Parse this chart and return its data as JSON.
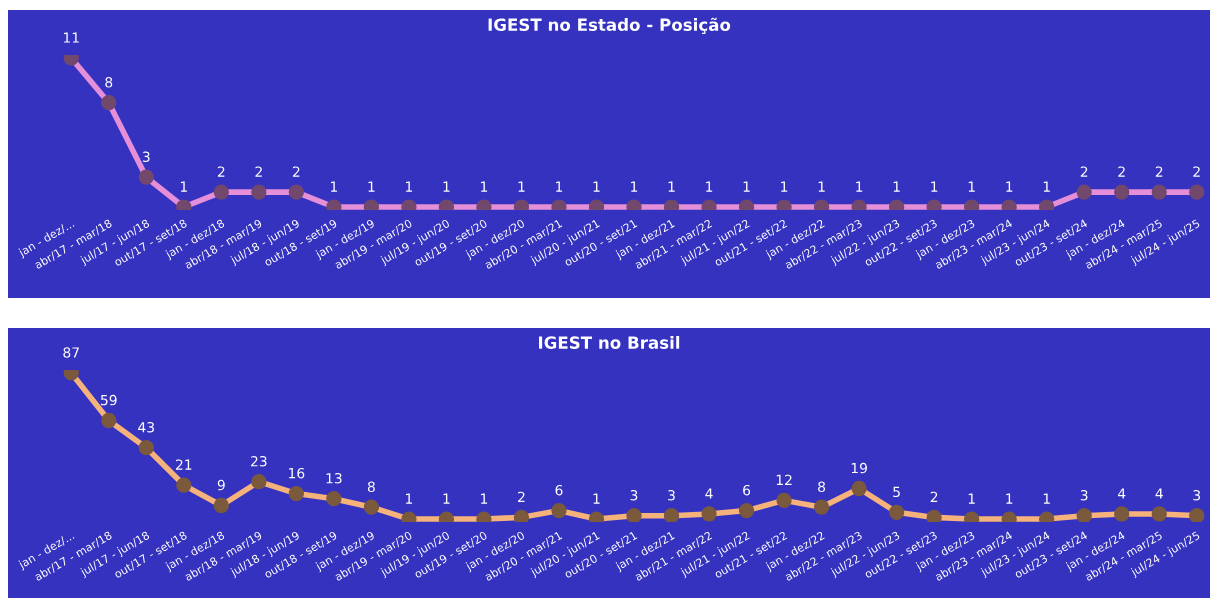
{
  "chart_data": [
    {
      "type": "line",
      "title": "IGEST no Estado - Posição",
      "categories": [
        "jan - dez/...",
        "abr/17 - mar/18",
        "jul/17 - jun/18",
        "out/17 - set/18",
        "jan - dez/18",
        "abr/18 - mar/19",
        "jul/18 - jun/19",
        "out/18 - set/19",
        "jan - dez/19",
        "abr/19 - mar/20",
        "jul/19 - jun/20",
        "out/19 - set/20",
        "jan - dez/20",
        "abr/20 - mar/21",
        "jul/20 - jun/21",
        "out/20 - set/21",
        "jan - dez/21",
        "abr/21 - mar/22",
        "jul/21 - jun/22",
        "out/21 - set/22",
        "jan - dez/22",
        "abr/22 - mar/23",
        "jul/22 - jun/23",
        "out/22 - set/23",
        "jan - dez/23",
        "abr/23 - mar/24",
        "jul/23 - jun/24",
        "out/23 - set/24",
        "jan - dez/24",
        "abr/24 - mar/25",
        "jul/24 - jun/25"
      ],
      "series": [
        {
          "color": "#e58fd8",
          "values": [
            11,
            8,
            3,
            1,
            2,
            2,
            2,
            1,
            1,
            1,
            1,
            1,
            1,
            1,
            1,
            1,
            1,
            1,
            1,
            1,
            1,
            1,
            1,
            1,
            1,
            1,
            1,
            2,
            2,
            2,
            2
          ]
        }
      ],
      "data_labels": true,
      "marker": "circle",
      "grid": false,
      "legend": false,
      "tick_labels": "x"
    },
    {
      "type": "line",
      "title": "IGEST no Brasil",
      "categories": [
        "jan - dez/...",
        "abr/17 - mar/18",
        "jul/17 - jun/18",
        "out/17 - set/18",
        "jan - dez/18",
        "abr/18 - mar/19",
        "jul/18 - jun/19",
        "out/18 - set/19",
        "jan - dez/19",
        "abr/19 - mar/20",
        "jul/19 - jun/20",
        "out/19 - set/20",
        "jan - dez/20",
        "abr/20 - mar/21",
        "jul/20 - jun/21",
        "out/20 - set/21",
        "jan - dez/21",
        "abr/21 - mar/22",
        "jul/21 - jun/22",
        "out/21 - set/22",
        "jan - dez/22",
        "abr/22 - mar/23",
        "jul/22 - jun/23",
        "out/22 - set/23",
        "jan - dez/23",
        "abr/23 - mar/24",
        "jul/23 - jun/24",
        "out/23 - set/24",
        "jan - dez/24",
        "abr/24 - mar/25",
        "jul/24 - jun/25"
      ],
      "series": [
        {
          "color": "#f5b27a",
          "values": [
            87,
            59,
            43,
            21,
            9,
            23,
            16,
            13,
            8,
            1,
            1,
            1,
            2,
            6,
            1,
            3,
            3,
            4,
            6,
            12,
            8,
            19,
            5,
            2,
            1,
            1,
            1,
            3,
            4,
            4,
            3
          ]
        }
      ],
      "data_labels": true,
      "marker": "circle",
      "grid": false,
      "legend": false,
      "tick_labels": "x"
    }
  ]
}
